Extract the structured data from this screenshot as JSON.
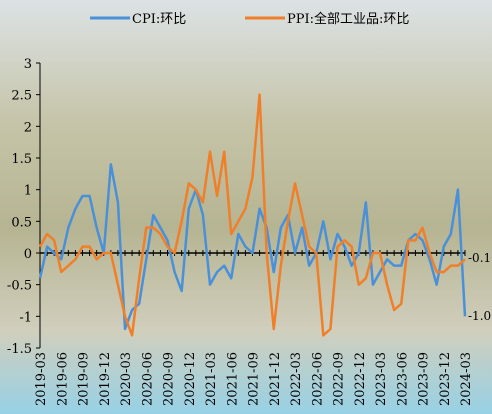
{
  "chart_data": {
    "type": "line",
    "categories": [
      "2019-03",
      null,
      null,
      "2019-06",
      null,
      null,
      "2019-09",
      null,
      null,
      "2019-12",
      null,
      null,
      "2020-03",
      null,
      null,
      "2020-06",
      null,
      null,
      "2020-09",
      null,
      null,
      "2020-12",
      null,
      null,
      "2021-03",
      null,
      null,
      "2021-06",
      null,
      null,
      "2021-09",
      null,
      null,
      "2021-12",
      null,
      null,
      "2022-03",
      null,
      null,
      "2022-06",
      null,
      null,
      "2022-09",
      null,
      null,
      "2022-12",
      null,
      null,
      "2023-03",
      null,
      null,
      "2023-06",
      null,
      null,
      "2023-09",
      null,
      null,
      "2023-12",
      null,
      null,
      "2024-03"
    ],
    "series": [
      {
        "name": "CPI:环比",
        "color": "#4a90d9",
        "values": [
          -0.4,
          0.1,
          0.0,
          -0.1,
          0.4,
          0.7,
          0.9,
          0.9,
          0.4,
          0.0,
          1.4,
          0.8,
          -1.2,
          -0.9,
          -0.8,
          -0.1,
          0.6,
          0.4,
          0.2,
          -0.3,
          -0.6,
          0.7,
          1.0,
          0.6,
          -0.5,
          -0.3,
          -0.2,
          -0.4,
          0.3,
          0.1,
          0.0,
          0.7,
          0.4,
          -0.3,
          0.4,
          0.6,
          0.0,
          0.4,
          -0.2,
          0.0,
          0.5,
          -0.1,
          0.3,
          0.1,
          -0.2,
          0.0,
          0.8,
          -0.5,
          -0.3,
          -0.1,
          -0.2,
          -0.2,
          0.2,
          0.3,
          0.2,
          -0.1,
          -0.5,
          0.1,
          0.3,
          1.0,
          -1.0
        ]
      },
      {
        "name": "PPI:全部工业品:环比",
        "color": "#f07f2a",
        "values": [
          0.1,
          0.3,
          0.2,
          -0.3,
          -0.2,
          -0.1,
          0.1,
          0.1,
          -0.1,
          0.0,
          0.0,
          -0.5,
          -1.0,
          -1.3,
          -0.4,
          0.4,
          0.4,
          0.3,
          0.1,
          0.0,
          0.5,
          1.1,
          1.0,
          0.8,
          1.6,
          0.9,
          1.6,
          0.3,
          0.5,
          0.7,
          1.2,
          2.5,
          0.0,
          -1.2,
          -0.2,
          0.5,
          1.1,
          0.6,
          0.1,
          0.0,
          -1.3,
          -1.2,
          0.1,
          0.2,
          0.1,
          -0.5,
          -0.4,
          0.0,
          0.0,
          -0.5,
          -0.9,
          -0.8,
          0.2,
          0.2,
          0.4,
          0.0,
          -0.3,
          -0.3,
          -0.2,
          -0.2,
          -0.1
        ]
      }
    ],
    "annotations": [
      "-0.10",
      "-1.00"
    ],
    "ylim": [
      -1.5,
      3
    ],
    "yticks": [
      -1.5,
      -1,
      -0.5,
      0,
      0.5,
      1,
      1.5,
      2,
      2.5,
      3
    ]
  }
}
